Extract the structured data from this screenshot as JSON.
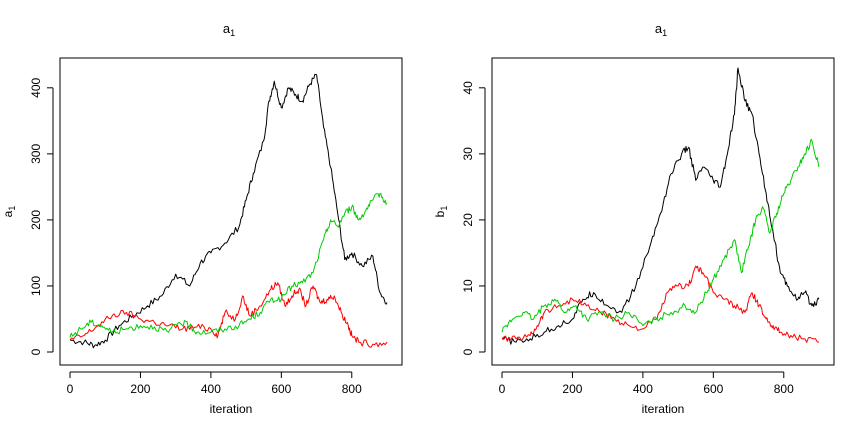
{
  "chart_data": [
    {
      "type": "line",
      "title": {
        "base": "a",
        "sub": "1"
      },
      "xlabel": "iteration",
      "ylabel": {
        "base": "a",
        "sub": "1"
      },
      "xlim": [
        0,
        900
      ],
      "ylim": [
        0,
        430
      ],
      "xticks": [
        "0",
        "200",
        "400",
        "600",
        "800"
      ],
      "yticks": [
        "0",
        "100",
        "200",
        "300",
        "400"
      ],
      "series": [
        {
          "color": "#000000",
          "points": [
            [
              0,
              18
            ],
            [
              40,
              15
            ],
            [
              70,
              10
            ],
            [
              100,
              18
            ],
            [
              140,
              40
            ],
            [
              180,
              55
            ],
            [
              220,
              70
            ],
            [
              260,
              85
            ],
            [
              300,
              118
            ],
            [
              340,
              100
            ],
            [
              370,
              135
            ],
            [
              400,
              150
            ],
            [
              440,
              165
            ],
            [
              480,
              190
            ],
            [
              500,
              230
            ],
            [
              520,
              270
            ],
            [
              550,
              320
            ],
            [
              565,
              380
            ],
            [
              580,
              410
            ],
            [
              600,
              370
            ],
            [
              620,
              400
            ],
            [
              640,
              390
            ],
            [
              660,
              380
            ],
            [
              680,
              405
            ],
            [
              700,
              420
            ],
            [
              720,
              340
            ],
            [
              740,
              280
            ],
            [
              760,
              210
            ],
            [
              780,
              140
            ],
            [
              800,
              150
            ],
            [
              830,
              130
            ],
            [
              860,
              145
            ],
            [
              880,
              90
            ],
            [
              900,
              75
            ]
          ]
        },
        {
          "color": "#ff0000",
          "points": [
            [
              0,
              18
            ],
            [
              40,
              25
            ],
            [
              80,
              40
            ],
            [
              120,
              55
            ],
            [
              160,
              60
            ],
            [
              200,
              50
            ],
            [
              240,
              45
            ],
            [
              280,
              40
            ],
            [
              320,
              35
            ],
            [
              360,
              38
            ],
            [
              400,
              35
            ],
            [
              420,
              25
            ],
            [
              440,
              60
            ],
            [
              470,
              50
            ],
            [
              490,
              85
            ],
            [
              510,
              55
            ],
            [
              540,
              70
            ],
            [
              570,
              95
            ],
            [
              590,
              105
            ],
            [
              610,
              70
            ],
            [
              630,
              85
            ],
            [
              650,
              95
            ],
            [
              670,
              70
            ],
            [
              690,
              100
            ],
            [
              710,
              75
            ],
            [
              730,
              80
            ],
            [
              750,
              85
            ],
            [
              770,
              60
            ],
            [
              790,
              40
            ],
            [
              800,
              25
            ],
            [
              820,
              15
            ],
            [
              860,
              12
            ],
            [
              900,
              15
            ]
          ]
        },
        {
          "color": "#00cc00",
          "points": [
            [
              0,
              22
            ],
            [
              30,
              35
            ],
            [
              60,
              45
            ],
            [
              90,
              40
            ],
            [
              120,
              30
            ],
            [
              160,
              35
            ],
            [
              200,
              40
            ],
            [
              240,
              38
            ],
            [
              280,
              30
            ],
            [
              310,
              45
            ],
            [
              340,
              40
            ],
            [
              360,
              30
            ],
            [
              400,
              30
            ],
            [
              440,
              35
            ],
            [
              480,
              40
            ],
            [
              510,
              50
            ],
            [
              540,
              60
            ],
            [
              570,
              80
            ],
            [
              600,
              80
            ],
            [
              630,
              100
            ],
            [
              660,
              105
            ],
            [
              690,
              120
            ],
            [
              720,
              170
            ],
            [
              740,
              200
            ],
            [
              760,
              190
            ],
            [
              780,
              210
            ],
            [
              800,
              220
            ],
            [
              820,
              200
            ],
            [
              840,
              215
            ],
            [
              860,
              230
            ],
            [
              880,
              240
            ],
            [
              900,
              225
            ]
          ]
        }
      ]
    },
    {
      "type": "line",
      "title": {
        "base": "a",
        "sub": "1"
      },
      "xlabel": "iteration",
      "ylabel": {
        "base": "b",
        "sub": "1"
      },
      "xlim": [
        0,
        900
      ],
      "ylim": [
        0,
        43
      ],
      "xticks": [
        "0",
        "200",
        "400",
        "600",
        "800"
      ],
      "yticks": [
        "0",
        "10",
        "20",
        "30",
        "40"
      ],
      "series": [
        {
          "color": "#000000",
          "points": [
            [
              0,
              2
            ],
            [
              40,
              1.5
            ],
            [
              80,
              2
            ],
            [
              120,
              3
            ],
            [
              160,
              4
            ],
            [
              200,
              5
            ],
            [
              230,
              8
            ],
            [
              260,
              9
            ],
            [
              300,
              7
            ],
            [
              340,
              6
            ],
            [
              380,
              10
            ],
            [
              420,
              16
            ],
            [
              450,
              21
            ],
            [
              480,
              27
            ],
            [
              510,
              30
            ],
            [
              530,
              31
            ],
            [
              550,
              26
            ],
            [
              570,
              28
            ],
            [
              600,
              26
            ],
            [
              620,
              25
            ],
            [
              640,
              30
            ],
            [
              660,
              36
            ],
            [
              670,
              43
            ],
            [
              690,
              38
            ],
            [
              710,
              36
            ],
            [
              730,
              30
            ],
            [
              750,
              24
            ],
            [
              770,
              18
            ],
            [
              790,
              12
            ],
            [
              810,
              10
            ],
            [
              840,
              8
            ],
            [
              860,
              9
            ],
            [
              880,
              7
            ],
            [
              900,
              8
            ]
          ]
        },
        {
          "color": "#ff0000",
          "points": [
            [
              0,
              2
            ],
            [
              40,
              2
            ],
            [
              80,
              2.5
            ],
            [
              100,
              4
            ],
            [
              120,
              6
            ],
            [
              160,
              7
            ],
            [
              200,
              8
            ],
            [
              240,
              7
            ],
            [
              280,
              6
            ],
            [
              320,
              5
            ],
            [
              360,
              4
            ],
            [
              400,
              3.5
            ],
            [
              440,
              5
            ],
            [
              470,
              9
            ],
            [
              500,
              10
            ],
            [
              530,
              10
            ],
            [
              550,
              13
            ],
            [
              570,
              12
            ],
            [
              600,
              9
            ],
            [
              630,
              8
            ],
            [
              660,
              7
            ],
            [
              690,
              6
            ],
            [
              710,
              9
            ],
            [
              730,
              7
            ],
            [
              750,
              5
            ],
            [
              770,
              4
            ],
            [
              790,
              3
            ],
            [
              820,
              2.5
            ],
            [
              860,
              2
            ],
            [
              900,
              1.5
            ]
          ]
        },
        {
          "color": "#00cc00",
          "points": [
            [
              0,
              3
            ],
            [
              30,
              5
            ],
            [
              60,
              6
            ],
            [
              90,
              5
            ],
            [
              120,
              7
            ],
            [
              150,
              8
            ],
            [
              180,
              6
            ],
            [
              210,
              7
            ],
            [
              240,
              5
            ],
            [
              280,
              6
            ],
            [
              320,
              5
            ],
            [
              360,
              6
            ],
            [
              400,
              4
            ],
            [
              440,
              5
            ],
            [
              480,
              6
            ],
            [
              520,
              7
            ],
            [
              550,
              6
            ],
            [
              580,
              9
            ],
            [
              600,
              11
            ],
            [
              630,
              14
            ],
            [
              660,
              17
            ],
            [
              680,
              12
            ],
            [
              700,
              16
            ],
            [
              720,
              20
            ],
            [
              740,
              22
            ],
            [
              760,
              18
            ],
            [
              780,
              21
            ],
            [
              800,
              24
            ],
            [
              820,
              26
            ],
            [
              840,
              28
            ],
            [
              860,
              30
            ],
            [
              880,
              32
            ],
            [
              900,
              28
            ]
          ]
        }
      ]
    }
  ]
}
